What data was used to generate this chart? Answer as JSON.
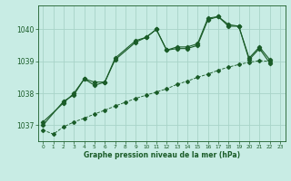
{
  "background_color": "#c8ece4",
  "grid_color": "#a8d4c8",
  "line_color": "#1a5c28",
  "title": "Graphe pression niveau de la mer (hPa)",
  "ylim": [
    1036.5,
    1040.75
  ],
  "xlim": [
    -0.5,
    23.5
  ],
  "yticks": [
    1037,
    1038,
    1039,
    1040
  ],
  "xticks": [
    0,
    1,
    2,
    3,
    4,
    5,
    6,
    7,
    8,
    9,
    10,
    11,
    12,
    13,
    14,
    15,
    16,
    17,
    18,
    19,
    20,
    21,
    22,
    23
  ],
  "s1": [
    1037.0,
    null,
    1037.75,
    1037.95,
    1038.45,
    1038.25,
    1038.35,
    1039.1,
    null,
    1039.65,
    1039.75,
    1040.0,
    1039.35,
    1039.45,
    1039.45,
    1039.55,
    1040.35,
    1040.4,
    1040.15,
    1040.1,
    1039.1,
    1039.45,
    1039.05,
    null
  ],
  "s2": [
    1037.1,
    null,
    1037.7,
    1038.0,
    1038.45,
    1038.35,
    1038.35,
    1039.05,
    null,
    1039.6,
    1039.75,
    1040.0,
    1039.35,
    1039.4,
    1039.4,
    1039.5,
    1040.3,
    1040.4,
    1040.1,
    1040.1,
    1039.05,
    1039.4,
    1038.95,
    null
  ],
  "s3": [
    1036.85,
    1036.72,
    1036.95,
    1037.1,
    1037.22,
    1037.35,
    1037.47,
    1037.6,
    1037.72,
    1037.84,
    1037.94,
    1038.04,
    1038.14,
    1038.28,
    1038.38,
    1038.5,
    1038.6,
    1038.72,
    1038.82,
    1038.9,
    1038.97,
    1039.02,
    1039.0,
    null
  ]
}
